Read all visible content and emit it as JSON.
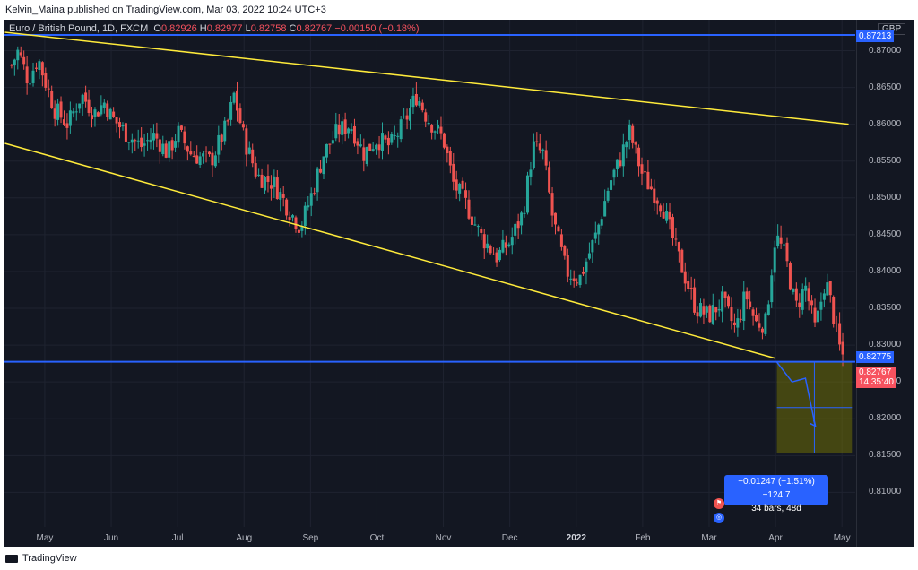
{
  "header": {
    "published_text": "Kelvin_Maina published on TradingView.com, Mar 03, 2022 10:24 UTC+3"
  },
  "legend": {
    "symbol": "Euro / British Pound, 1D, FXCM",
    "open_label": "O",
    "open": "0.82926",
    "high_label": "H",
    "high": "0.82977",
    "low_label": "L",
    "low": "0.82758",
    "close_label": "C",
    "close": "0.82767",
    "change": "−0.00150 (−0.18%)"
  },
  "currency": "GBP",
  "price_labels": {
    "top_line": "0.87213",
    "support": "0.82775",
    "last_price": "0.82767",
    "countdown": "14:35:40"
  },
  "measure": {
    "line1": "−0.01247 (−1.51%) −124.7",
    "line2": "34 bars, 48d"
  },
  "footer": {
    "brand": "TradingView"
  },
  "colors": {
    "background": "#131722",
    "up": "#26a69a",
    "down": "#ef5350",
    "channel": "#ffeb3b",
    "level": "#2962ff",
    "projection": "#808000"
  },
  "chart_data": {
    "type": "candlestick",
    "title": "Euro / British Pound, 1D, FXCM",
    "y_ticks": [
      "0.87000",
      "0.86500",
      "0.86000",
      "0.85500",
      "0.85000",
      "0.84500",
      "0.84000",
      "0.83500",
      "0.83000",
      "0.82500",
      "0.82000",
      "0.81500",
      "0.81000"
    ],
    "x_ticks": [
      {
        "label": "May",
        "bold": false
      },
      {
        "label": "Jun",
        "bold": false
      },
      {
        "label": "Jul",
        "bold": false
      },
      {
        "label": "Aug",
        "bold": false
      },
      {
        "label": "Sep",
        "bold": false
      },
      {
        "label": "Oct",
        "bold": false
      },
      {
        "label": "Nov",
        "bold": false
      },
      {
        "label": "Dec",
        "bold": false
      },
      {
        "label": "2022",
        "bold": true
      },
      {
        "label": "Feb",
        "bold": false
      },
      {
        "label": "Mar",
        "bold": false
      },
      {
        "label": "Apr",
        "bold": false
      },
      {
        "label": "May",
        "bold": false
      }
    ],
    "ylim": [
      0.8053,
      0.8742
    ],
    "x_range_months": [
      3.38,
      16.2
    ],
    "close_path": [
      [
        3.5,
        0.868
      ],
      [
        3.6,
        0.87
      ],
      [
        3.75,
        0.866
      ],
      [
        3.9,
        0.869
      ],
      [
        4.0,
        0.866
      ],
      [
        4.15,
        0.862
      ],
      [
        4.35,
        0.86
      ],
      [
        4.55,
        0.864
      ],
      [
        4.75,
        0.8615
      ],
      [
        4.9,
        0.863
      ],
      [
        5.0,
        0.861
      ],
      [
        5.2,
        0.859
      ],
      [
        5.45,
        0.857
      ],
      [
        5.65,
        0.8585
      ],
      [
        5.85,
        0.856
      ],
      [
        6.0,
        0.859
      ],
      [
        6.2,
        0.856
      ],
      [
        6.5,
        0.855
      ],
      [
        6.75,
        0.86
      ],
      [
        6.85,
        0.864
      ],
      [
        7.0,
        0.858
      ],
      [
        7.2,
        0.853
      ],
      [
        7.45,
        0.852
      ],
      [
        7.7,
        0.848
      ],
      [
        7.85,
        0.846
      ],
      [
        8.0,
        0.85
      ],
      [
        8.2,
        0.856
      ],
      [
        8.4,
        0.859
      ],
      [
        8.6,
        0.86
      ],
      [
        8.8,
        0.856
      ],
      [
        9.0,
        0.858
      ],
      [
        9.2,
        0.857
      ],
      [
        9.4,
        0.86
      ],
      [
        9.6,
        0.864
      ],
      [
        9.75,
        0.861
      ],
      [
        10.0,
        0.858
      ],
      [
        10.15,
        0.852
      ],
      [
        10.35,
        0.849
      ],
      [
        10.55,
        0.845
      ],
      [
        10.8,
        0.842
      ],
      [
        11.0,
        0.844
      ],
      [
        11.2,
        0.848
      ],
      [
        11.35,
        0.857
      ],
      [
        11.5,
        0.856
      ],
      [
        11.65,
        0.847
      ],
      [
        11.85,
        0.84
      ],
      [
        12.05,
        0.839
      ],
      [
        12.3,
        0.845
      ],
      [
        12.5,
        0.852
      ],
      [
        12.65,
        0.855
      ],
      [
        12.8,
        0.859
      ],
      [
        13.0,
        0.853
      ],
      [
        13.15,
        0.851
      ],
      [
        13.3,
        0.849
      ],
      [
        13.5,
        0.843
      ],
      [
        13.65,
        0.839
      ],
      [
        13.8,
        0.835
      ],
      [
        14.0,
        0.834
      ],
      [
        14.2,
        0.836
      ],
      [
        14.4,
        0.832
      ],
      [
        14.55,
        0.837
      ],
      [
        14.7,
        0.833
      ],
      [
        14.85,
        0.833
      ],
      [
        15.0,
        0.845
      ],
      [
        15.15,
        0.842
      ],
      [
        15.3,
        0.835
      ],
      [
        15.45,
        0.838
      ],
      [
        15.6,
        0.832
      ],
      [
        15.75,
        0.839
      ],
      [
        15.85,
        0.835
      ],
      [
        15.95,
        0.83
      ],
      [
        16.05,
        0.8277
      ]
    ],
    "levels": [
      0.87213,
      0.82775
    ],
    "channel": {
      "upper": [
        [
          3.4,
          0.8725
        ],
        [
          16.1,
          0.86
        ]
      ],
      "lower": [
        [
          3.4,
          0.8574
        ],
        [
          15.0,
          0.8282
        ]
      ]
    },
    "projection": {
      "x_range": [
        15.02,
        16.15
      ],
      "y_range": [
        0.81528,
        0.82775
      ],
      "arrow": [
        [
          15.02,
          0.8277
        ],
        [
          15.25,
          0.825
        ],
        [
          15.45,
          0.8255
        ],
        [
          15.6,
          0.819
        ]
      ]
    }
  }
}
